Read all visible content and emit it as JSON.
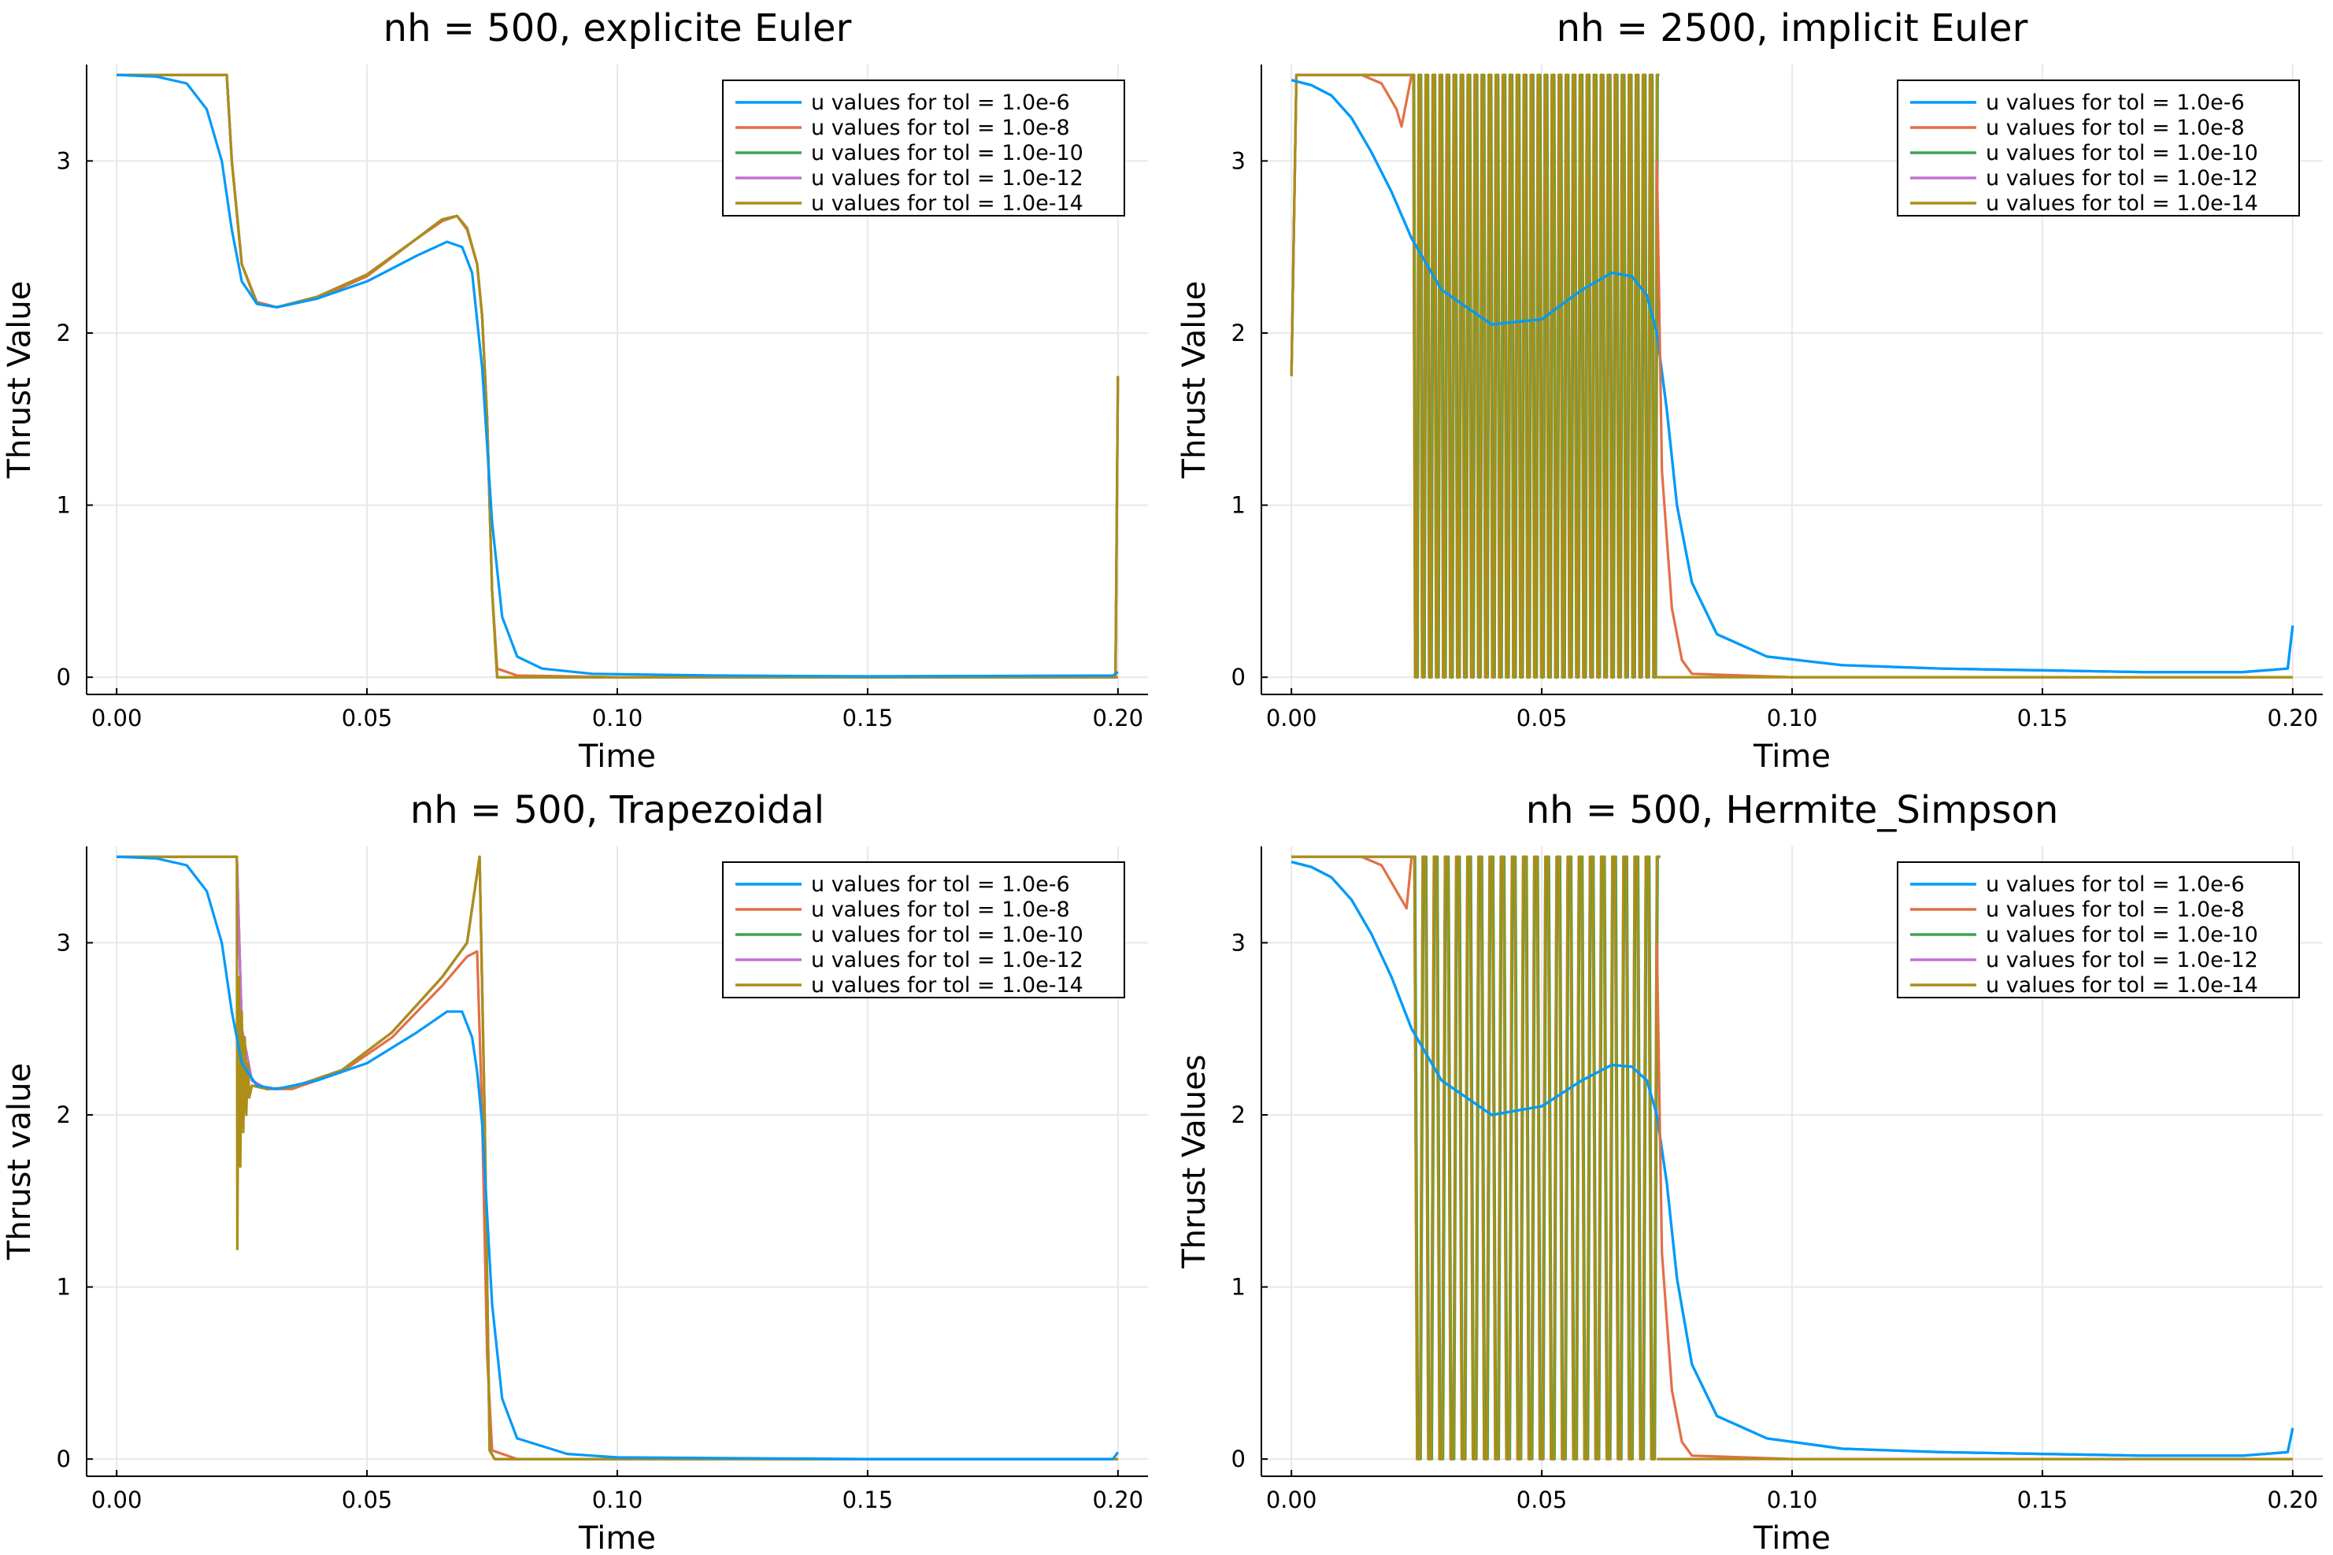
{
  "figure": {
    "layout": "2x2 grid of line plots"
  },
  "series_colors": [
    "#009AFA",
    "#E36F47",
    "#3EA44E",
    "#C371D2",
    "#AC8E18"
  ],
  "chart_data": [
    {
      "type": "line",
      "title": "nh = 500, explicite Euler",
      "xlabel": "Time",
      "ylabel": "Thrust Value",
      "xlim": [
        -0.006,
        0.206
      ],
      "ylim": [
        -0.1,
        3.56
      ],
      "xticks": [
        "0.00",
        "0.05",
        "0.10",
        "0.15",
        "0.20"
      ],
      "yticks": [
        "0",
        "1",
        "2",
        "3"
      ],
      "grid": true,
      "legend_position": "top-right",
      "series": [
        {
          "name": "u values for tol = 1.0e-6",
          "color": "#009AFA",
          "x": [
            0,
            0.008,
            0.014,
            0.018,
            0.021,
            0.023,
            0.025,
            0.028,
            0.032,
            0.04,
            0.05,
            0.06,
            0.066,
            0.069,
            0.071,
            0.073,
            0.075,
            0.077,
            0.08,
            0.085,
            0.095,
            0.12,
            0.15,
            0.199,
            0.2
          ],
          "y": [
            3.5,
            3.49,
            3.45,
            3.3,
            3.0,
            2.6,
            2.3,
            2.17,
            2.15,
            2.2,
            2.3,
            2.45,
            2.53,
            2.5,
            2.35,
            1.8,
            0.9,
            0.35,
            0.12,
            0.05,
            0.02,
            0.01,
            0.005,
            0.01,
            0.03
          ]
        },
        {
          "name": "u values for tol = 1.0e-8",
          "color": "#E36F47",
          "x": [
            0,
            0.022,
            0.023,
            0.025,
            0.028,
            0.032,
            0.04,
            0.05,
            0.06,
            0.065,
            0.068,
            0.07,
            0.072,
            0.073,
            0.074,
            0.075,
            0.076,
            0.08,
            0.1,
            0.15,
            0.199,
            0.2
          ],
          "y": [
            3.5,
            3.5,
            3.0,
            2.4,
            2.18,
            2.15,
            2.2,
            2.33,
            2.55,
            2.65,
            2.68,
            2.6,
            2.4,
            2.1,
            1.5,
            0.5,
            0.05,
            0.01,
            0.0,
            0.0,
            0.0,
            0.0
          ]
        },
        {
          "name": "u values for tol = 1.0e-10",
          "color": "#3EA44E",
          "x": [
            0,
            0.022,
            0.023,
            0.025,
            0.028,
            0.032,
            0.04,
            0.05,
            0.06,
            0.065,
            0.068,
            0.07,
            0.072,
            0.073,
            0.074,
            0.075,
            0.076,
            0.1,
            0.15,
            0.1995,
            0.2
          ],
          "y": [
            3.5,
            3.5,
            3.0,
            2.4,
            2.17,
            2.15,
            2.21,
            2.34,
            2.55,
            2.66,
            2.68,
            2.61,
            2.4,
            2.1,
            1.5,
            0.5,
            0.0,
            0.0,
            0.0,
            0.0,
            1.75
          ]
        },
        {
          "name": "u values for tol = 1.0e-12",
          "color": "#C371D2",
          "x": [
            0,
            0.022,
            0.023,
            0.025,
            0.028,
            0.032,
            0.04,
            0.05,
            0.06,
            0.065,
            0.068,
            0.07,
            0.072,
            0.073,
            0.074,
            0.075,
            0.076,
            0.1,
            0.15,
            0.1995,
            0.2
          ],
          "y": [
            3.5,
            3.5,
            3.0,
            2.4,
            2.17,
            2.15,
            2.21,
            2.34,
            2.55,
            2.66,
            2.68,
            2.61,
            2.4,
            2.1,
            1.5,
            0.5,
            0.0,
            0.0,
            0.0,
            0.0,
            1.75
          ]
        },
        {
          "name": "u values for tol = 1.0e-14",
          "color": "#AC8E18",
          "x": [
            0,
            0.022,
            0.023,
            0.025,
            0.028,
            0.032,
            0.04,
            0.05,
            0.06,
            0.065,
            0.068,
            0.07,
            0.072,
            0.073,
            0.074,
            0.075,
            0.076,
            0.1,
            0.15,
            0.1995,
            0.2
          ],
          "y": [
            3.5,
            3.5,
            3.0,
            2.4,
            2.17,
            2.15,
            2.21,
            2.34,
            2.55,
            2.66,
            2.68,
            2.61,
            2.4,
            2.1,
            1.5,
            0.5,
            0.0,
            0.0,
            0.0,
            0.0,
            1.75
          ]
        }
      ]
    },
    {
      "type": "line",
      "title": "nh = 2500, implicit Euler",
      "xlabel": "Time",
      "ylabel": "Thrust Value",
      "xlim": [
        -0.006,
        0.206
      ],
      "ylim": [
        -0.1,
        3.56
      ],
      "xticks": [
        "0.00",
        "0.05",
        "0.10",
        "0.15",
        "0.20"
      ],
      "yticks": [
        "0",
        "1",
        "2",
        "3"
      ],
      "grid": true,
      "legend_position": "top-right",
      "series": [
        {
          "name": "u values for tol = 1.0e-6",
          "color": "#009AFA",
          "x": [
            0,
            0.004,
            0.008,
            0.012,
            0.016,
            0.02,
            0.024,
            0.03,
            0.04,
            0.05,
            0.058,
            0.064,
            0.068,
            0.071,
            0.073,
            0.075,
            0.077,
            0.08,
            0.085,
            0.095,
            0.11,
            0.13,
            0.15,
            0.17,
            0.19,
            0.199,
            0.2
          ],
          "y": [
            3.47,
            3.44,
            3.38,
            3.25,
            3.05,
            2.82,
            2.55,
            2.25,
            2.05,
            2.08,
            2.25,
            2.35,
            2.33,
            2.22,
            2.0,
            1.55,
            1.0,
            0.55,
            0.25,
            0.12,
            0.07,
            0.05,
            0.04,
            0.03,
            0.03,
            0.05,
            0.3
          ]
        },
        {
          "name": "u values for tol = 1.0e-8",
          "color": "#E36F47",
          "x": [
            0,
            0.001,
            0.014,
            0.018,
            0.021,
            0.022,
            0.024
          ],
          "y": [
            1.75,
            3.5,
            3.5,
            3.45,
            3.3,
            3.2,
            3.5
          ]
        },
        {
          "name": "u values for tol = 1.0e-10",
          "color": "#3EA44E",
          "x": [
            0,
            0.001,
            0.024
          ],
          "y": [
            1.75,
            3.5,
            3.5
          ]
        },
        {
          "name": "u values for tol = 1.0e-12",
          "color": "#C371D2",
          "x": [
            0,
            0.001,
            0.024
          ],
          "y": [
            1.75,
            3.5,
            3.5
          ]
        },
        {
          "name": "u values for tol = 1.0e-14",
          "color": "#AC8E18",
          "x": [
            0,
            0.001,
            0.024
          ],
          "y": [
            1.75,
            3.5,
            3.5
          ]
        }
      ],
      "bang_bang_region": {
        "x_start": 0.024,
        "x_end": 0.073,
        "low": 0.0,
        "high": 3.5,
        "switches": 70
      },
      "tail_after_region": [
        {
          "series": "u values for tol = 1.0e-8",
          "x": [
            0.073,
            0.074,
            0.076,
            0.078,
            0.08,
            0.1,
            0.2
          ],
          "y": [
            3.0,
            1.2,
            0.4,
            0.1,
            0.02,
            0.0,
            0.0
          ]
        },
        {
          "series": "u values for tol = 1.0e-14",
          "x": [
            0.073,
            0.2
          ],
          "y": [
            0.0,
            0.0
          ]
        }
      ]
    },
    {
      "type": "line",
      "title": "nh = 500, Trapezoidal",
      "xlabel": "Time",
      "ylabel": "Thrust value",
      "xlim": [
        -0.006,
        0.206
      ],
      "ylim": [
        -0.1,
        3.56
      ],
      "xticks": [
        "0.00",
        "0.05",
        "0.10",
        "0.15",
        "0.20"
      ],
      "yticks": [
        "0",
        "1",
        "2",
        "3"
      ],
      "grid": true,
      "legend_position": "top-right",
      "series": [
        {
          "name": "u values for tol = 1.0e-6",
          "color": "#009AFA",
          "x": [
            0,
            0.008,
            0.014,
            0.018,
            0.021,
            0.023,
            0.025,
            0.028,
            0.032,
            0.04,
            0.05,
            0.06,
            0.066,
            0.069,
            0.071,
            0.072,
            0.073,
            0.075,
            0.077,
            0.08,
            0.09,
            0.1,
            0.15,
            0.199,
            0.2
          ],
          "y": [
            3.5,
            3.49,
            3.45,
            3.3,
            3.0,
            2.6,
            2.3,
            2.17,
            2.15,
            2.2,
            2.3,
            2.48,
            2.6,
            2.6,
            2.45,
            2.25,
            1.95,
            0.9,
            0.35,
            0.12,
            0.03,
            0.01,
            0.0,
            0.0,
            0.04
          ]
        },
        {
          "name": "u values for tol = 1.0e-8",
          "color": "#E36F47",
          "x": [
            0,
            0.024,
            0.025,
            0.027,
            0.03,
            0.035,
            0.045,
            0.055,
            0.065,
            0.07,
            0.072,
            0.073,
            0.074,
            0.075,
            0.08,
            0.2
          ],
          "y": [
            3.5,
            3.5,
            2.5,
            2.2,
            2.15,
            2.15,
            2.25,
            2.45,
            2.75,
            2.92,
            2.95,
            2.0,
            0.6,
            0.05,
            0.0,
            0.0
          ]
        },
        {
          "name": "u values for tol = 1.0e-10",
          "color": "#3EA44E",
          "x": [
            0,
            0.024,
            0.025,
            0.027,
            0.03,
            0.035,
            0.045,
            0.055,
            0.065,
            0.07,
            0.0725,
            0.0735,
            0.0745,
            0.0755,
            0.2
          ],
          "y": [
            3.5,
            3.5,
            2.5,
            2.2,
            2.15,
            2.16,
            2.26,
            2.48,
            2.8,
            3.0,
            3.5,
            2.0,
            0.05,
            0.0,
            0.0
          ]
        },
        {
          "name": "u values for tol = 1.0e-12",
          "color": "#C371D2",
          "x": [
            0,
            0.024,
            0.025,
            0.027,
            0.03,
            0.035,
            0.045,
            0.055,
            0.065,
            0.07,
            0.0725,
            0.0735,
            0.0745,
            0.0755,
            0.2
          ],
          "y": [
            3.5,
            3.5,
            2.5,
            2.2,
            2.15,
            2.16,
            2.26,
            2.48,
            2.8,
            3.0,
            3.5,
            2.0,
            0.05,
            0.0,
            0.0
          ]
        },
        {
          "name": "u values for tol = 1.0e-14",
          "color": "#AC8E18",
          "x": [
            0,
            0.024,
            0.0241,
            0.0244,
            0.0247,
            0.025,
            0.0253,
            0.0256,
            0.0259,
            0.0262,
            0.0265,
            0.027,
            0.03,
            0.035,
            0.045,
            0.055,
            0.065,
            0.07,
            0.0725,
            0.0735,
            0.0745,
            0.0755,
            0.2
          ],
          "y": [
            3.5,
            3.5,
            1.22,
            2.8,
            1.7,
            2.6,
            1.9,
            2.45,
            2.0,
            2.3,
            2.1,
            2.17,
            2.15,
            2.16,
            2.26,
            2.48,
            2.8,
            3.0,
            3.5,
            2.0,
            0.05,
            0.0,
            0.0
          ]
        }
      ]
    },
    {
      "type": "line",
      "title": "nh = 500, Hermite_Simpson",
      "xlabel": "Time",
      "ylabel": "Thrust Values",
      "xlim": [
        -0.006,
        0.206
      ],
      "ylim": [
        -0.1,
        3.56
      ],
      "xticks": [
        "0.00",
        "0.05",
        "0.10",
        "0.15",
        "0.20"
      ],
      "yticks": [
        "0",
        "1",
        "2",
        "3"
      ],
      "grid": true,
      "legend_position": "top-right",
      "series": [
        {
          "name": "u values for tol = 1.0e-6",
          "color": "#009AFA",
          "x": [
            0,
            0.004,
            0.008,
            0.012,
            0.016,
            0.02,
            0.024,
            0.03,
            0.04,
            0.05,
            0.058,
            0.064,
            0.068,
            0.071,
            0.073,
            0.075,
            0.077,
            0.08,
            0.085,
            0.095,
            0.11,
            0.13,
            0.15,
            0.17,
            0.19,
            0.199,
            0.2
          ],
          "y": [
            3.47,
            3.44,
            3.38,
            3.25,
            3.05,
            2.8,
            2.5,
            2.2,
            2.0,
            2.05,
            2.2,
            2.29,
            2.28,
            2.2,
            2.0,
            1.6,
            1.05,
            0.55,
            0.25,
            0.12,
            0.06,
            0.04,
            0.03,
            0.02,
            0.02,
            0.04,
            0.18
          ]
        },
        {
          "name": "u values for tol = 1.0e-8",
          "color": "#E36F47",
          "x": [
            0,
            0.014,
            0.018,
            0.021,
            0.023,
            0.024
          ],
          "y": [
            3.5,
            3.5,
            3.45,
            3.3,
            3.2,
            3.5
          ]
        },
        {
          "name": "u values for tol = 1.0e-10",
          "color": "#3EA44E",
          "x": [
            0,
            0.024
          ],
          "y": [
            3.5,
            3.5
          ]
        },
        {
          "name": "u values for tol = 1.0e-12",
          "color": "#C371D2",
          "x": [
            0,
            0.024
          ],
          "y": [
            3.5,
            3.5
          ]
        },
        {
          "name": "u values for tol = 1.0e-14",
          "color": "#AC8E18",
          "x": [
            0,
            0.024
          ],
          "y": [
            3.5,
            3.5
          ]
        }
      ],
      "bang_bang_region": {
        "x_start": 0.024,
        "x_end": 0.073,
        "low": 0.0,
        "high": 3.5,
        "switches": 44
      },
      "tail_after_region": [
        {
          "series": "u values for tol = 1.0e-8",
          "x": [
            0.073,
            0.074,
            0.076,
            0.078,
            0.08,
            0.1,
            0.2
          ],
          "y": [
            3.0,
            1.2,
            0.4,
            0.1,
            0.02,
            0.0,
            0.0
          ]
        },
        {
          "series": "u values for tol = 1.0e-14",
          "x": [
            0.073,
            0.2
          ],
          "y": [
            0.0,
            0.0
          ]
        }
      ]
    }
  ]
}
